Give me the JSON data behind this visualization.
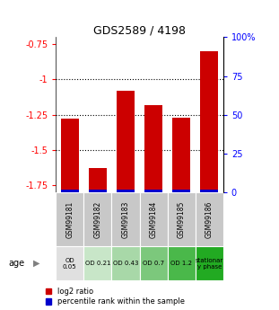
{
  "title": "GDS2589 / 4198",
  "categories": [
    "GSM99181",
    "GSM99182",
    "GSM99183",
    "GSM99184",
    "GSM99185",
    "GSM99186"
  ],
  "log2_values": [
    -1.28,
    -1.63,
    -1.08,
    -1.18,
    -1.27,
    -0.8
  ],
  "percentile_values": [
    1.5,
    1.5,
    1.5,
    1.5,
    1.5,
    1.5
  ],
  "ylim_left": [
    -1.8,
    -0.7
  ],
  "ylim_right": [
    0,
    100
  ],
  "yticks_left": [
    -1.75,
    -1.5,
    -1.25,
    -1.0,
    -0.75
  ],
  "ytick_labels_left": [
    "-1.75",
    "-1.5",
    "-1.25",
    "-1",
    "-0.75"
  ],
  "yticks_right": [
    0,
    25,
    50,
    75,
    100
  ],
  "ytick_labels_right": [
    "0",
    "25",
    "50",
    "75",
    "100%"
  ],
  "bar_color_red": "#cc0000",
  "bar_color_blue": "#0000cc",
  "dotted_line_y": [
    -1.0,
    -1.25,
    -1.5
  ],
  "age_labels": [
    "OD\n0.05",
    "OD 0.21",
    "OD 0.43",
    "OD 0.7",
    "OD 1.2",
    "stationar\ny phase"
  ],
  "age_bg_colors": [
    "#e0e0e0",
    "#c8e6c8",
    "#a8d8a8",
    "#7cc87c",
    "#4ab84a",
    "#22aa22"
  ],
  "sample_bg_color": "#c8c8c8",
  "bar_bottom": -1.8
}
